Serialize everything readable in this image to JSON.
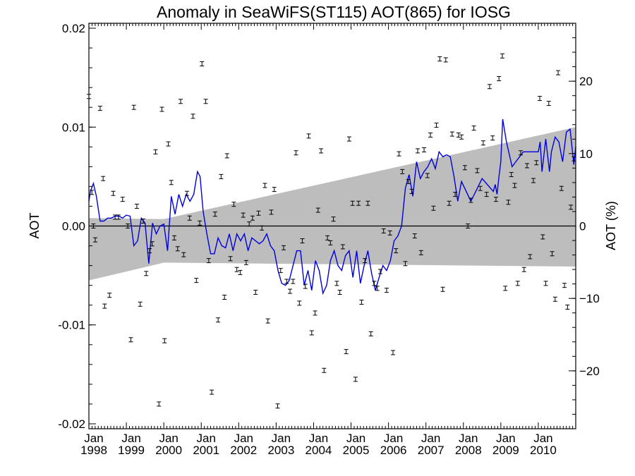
{
  "chart_data": {
    "type": "scatter",
    "title": "Anomaly in SeaWiFS(ST115) AOT(865) for IOSG",
    "ylabel": "AOT",
    "y2label": "AOT (%)",
    "xlabel": "",
    "xlim": [
      1998.0,
      2011.0
    ],
    "ylim": [
      -0.0205,
      0.0205
    ],
    "y2lim": [
      -28.0,
      28.0
    ],
    "x_ticks": [
      {
        "value": 1998,
        "month": "Jan",
        "year": "1998"
      },
      {
        "value": 1999,
        "month": "Jan",
        "year": "1999"
      },
      {
        "value": 2000,
        "month": "Jan",
        "year": "2000"
      },
      {
        "value": 2001,
        "month": "Jan",
        "year": "2001"
      },
      {
        "value": 2002,
        "month": "Jan",
        "year": "2002"
      },
      {
        "value": 2003,
        "month": "Jan",
        "year": "2003"
      },
      {
        "value": 2004,
        "month": "Jan",
        "year": "2004"
      },
      {
        "value": 2005,
        "month": "Jan",
        "year": "2005"
      },
      {
        "value": 2006,
        "month": "Jan",
        "year": "2006"
      },
      {
        "value": 2007,
        "month": "Jan",
        "year": "2007"
      },
      {
        "value": 2008,
        "month": "Jan",
        "year": "2008"
      },
      {
        "value": 2009,
        "month": "Jan",
        "year": "2009"
      },
      {
        "value": 2010,
        "month": "Jan",
        "year": "2010"
      }
    ],
    "y_ticks": [
      {
        "value": 0.02,
        "label": "0.02"
      },
      {
        "value": 0.01,
        "label": "0.01"
      },
      {
        "value": 0.0,
        "label": "0.00"
      },
      {
        "value": -0.01,
        "label": "-0.01"
      },
      {
        "value": -0.02,
        "label": "-0.02"
      }
    ],
    "y2_ticks": [
      {
        "value": 20,
        "label": "20"
      },
      {
        "value": 10,
        "label": "10"
      },
      {
        "value": 0,
        "label": "0"
      },
      {
        "value": -10,
        "label": "−10"
      },
      {
        "value": -20,
        "label": "−20"
      }
    ],
    "colors": {
      "line": "#0000dd",
      "band": "#bdbdbd",
      "points": "#000000"
    },
    "envelope": {
      "x": [
        1998.0,
        1999.9,
        2000.0,
        2011.0
      ],
      "upper": [
        0.0008,
        0.0007,
        0.0007,
        0.01
      ],
      "lower": [
        -0.0055,
        -0.0038,
        -0.0037,
        -0.0041
      ]
    },
    "series": [
      {
        "type": "line",
        "x": [
          1998.0,
          1998.04,
          1998.12,
          1998.2,
          1998.3,
          1998.4,
          1998.5,
          1998.6,
          1998.7,
          1998.8,
          1998.9,
          1999.0,
          1999.1,
          1999.2,
          1999.3,
          1999.4,
          1999.5,
          1999.6,
          1999.7,
          1999.8,
          1999.9,
          2000.0,
          2000.1,
          2000.2,
          2000.3,
          2000.4,
          2000.5,
          2000.6,
          2000.7,
          2000.8,
          2000.9,
          2000.97,
          2001.05,
          2001.15,
          2001.25,
          2001.35,
          2001.45,
          2001.55,
          2001.65,
          2001.75,
          2001.85,
          2001.95,
          2002.05,
          2002.15,
          2002.25,
          2002.35,
          2002.45,
          2002.55,
          2002.65,
          2002.75,
          2002.85,
          2002.95,
          2003.05,
          2003.15,
          2003.25,
          2003.35,
          2003.45,
          2003.55,
          2003.65,
          2003.75,
          2003.85,
          2003.95,
          2004.05,
          2004.15,
          2004.25,
          2004.35,
          2004.45,
          2004.55,
          2004.65,
          2004.75,
          2004.85,
          2004.95,
          2005.05,
          2005.15,
          2005.25,
          2005.35,
          2005.45,
          2005.55,
          2005.65,
          2005.75,
          2005.85,
          2005.95,
          2006.05,
          2006.15,
          2006.25,
          2006.35,
          2006.45,
          2006.55,
          2006.65,
          2006.75,
          2006.85,
          2006.95,
          2007.05,
          2007.15,
          2007.25,
          2007.35,
          2007.45,
          2007.55,
          2007.65,
          2007.75,
          2007.85,
          2007.95,
          2008.2,
          2008.5,
          2008.8,
          2008.85,
          2008.9,
          2008.95,
          2009.0,
          2009.05,
          2009.15,
          2009.3,
          2009.6,
          2009.8,
          2010.0,
          2010.05,
          2010.1,
          2010.2,
          2010.3,
          2010.35,
          2010.45,
          2010.55,
          2010.65,
          2010.75,
          2010.85,
          2010.95,
          2011.0
        ],
        "y": [
          0.0025,
          0.0035,
          0.0043,
          0.003,
          0.0005,
          0.0005,
          0.0008,
          0.0008,
          0.001,
          0.001,
          0.0008,
          0.0011,
          0.001,
          -0.002,
          -0.0015,
          0.0008,
          0.0003,
          -0.0038,
          0.0003,
          -0.0008,
          0.0,
          0.0002,
          -0.0025,
          0.003,
          0.0012,
          0.0032,
          0.002,
          0.0032,
          0.0025,
          0.0032,
          0.0055,
          0.005,
          0.0015,
          -0.0008,
          -0.0028,
          -0.0028,
          -0.0012,
          -0.002,
          -0.0022,
          -0.0008,
          -0.0025,
          -0.0008,
          -0.0015,
          -0.0008,
          -0.0025,
          -0.0012,
          -0.0015,
          -0.0018,
          -0.0015,
          -0.0008,
          -0.002,
          -0.0025,
          -0.0045,
          -0.0058,
          -0.006,
          -0.0055,
          -0.004,
          -0.0025,
          -0.0025,
          -0.006,
          -0.0045,
          -0.0065,
          -0.0035,
          -0.0045,
          -0.0068,
          -0.006,
          -0.0035,
          -0.0025,
          -0.004,
          -0.0045,
          -0.003,
          -0.0025,
          -0.0052,
          -0.0025,
          -0.0058,
          -0.004,
          -0.0025,
          -0.0048,
          -0.0065,
          -0.0052,
          -0.004,
          -0.0045,
          -0.0035,
          -0.0015,
          -0.001,
          0.0,
          0.0038,
          0.0052,
          0.003,
          0.0065,
          0.0048,
          0.0055,
          0.006,
          0.0068,
          0.0058,
          0.0075,
          0.007,
          0.0072,
          0.007,
          0.005,
          0.0025,
          0.0045,
          0.0025,
          0.0048,
          0.0035,
          0.0042,
          0.0032,
          0.005,
          0.0065,
          0.0108,
          0.0085,
          0.006,
          0.0075,
          0.0075,
          0.0075,
          0.0085,
          0.0055,
          0.0088,
          0.0055,
          0.0075,
          0.009,
          0.0085,
          0.0065,
          0.0095,
          0.0098,
          0.0062,
          0.008
        ]
      },
      {
        "type": "errorbar_points",
        "x": [
          1998.0,
          1998.08,
          1998.12,
          1998.17,
          1998.3,
          1998.38,
          1998.42,
          1998.55,
          1998.65,
          1998.7,
          1998.79,
          1998.9,
          1999.04,
          1999.12,
          1999.2,
          1999.28,
          1999.37,
          1999.45,
          1999.53,
          1999.62,
          1999.69,
          1999.78,
          1999.87,
          1999.95,
          2000.02,
          2000.12,
          2000.2,
          2000.28,
          2000.37,
          2000.45,
          2000.53,
          2000.62,
          2000.69,
          2000.78,
          2000.87,
          2000.96,
          2001.02,
          2001.12,
          2001.2,
          2001.28,
          2001.37,
          2001.45,
          2001.53,
          2001.62,
          2001.69,
          2001.78,
          2001.87,
          2001.95,
          2002.04,
          2002.12,
          2002.2,
          2002.28,
          2002.37,
          2002.45,
          2002.53,
          2002.62,
          2002.7,
          2002.78,
          2002.87,
          2002.95,
          2003.04,
          2003.12,
          2003.2,
          2003.28,
          2003.37,
          2003.45,
          2003.53,
          2003.62,
          2003.7,
          2003.78,
          2003.87,
          2003.95,
          2004.04,
          2004.12,
          2004.2,
          2004.28,
          2004.37,
          2004.45,
          2004.53,
          2004.62,
          2004.7,
          2004.78,
          2004.87,
          2004.95,
          2005.04,
          2005.12,
          2005.2,
          2005.28,
          2005.37,
          2005.45,
          2005.53,
          2005.62,
          2005.7,
          2005.78,
          2005.87,
          2005.95,
          2006.04,
          2006.12,
          2006.2,
          2006.28,
          2006.37,
          2006.45,
          2006.53,
          2006.62,
          2006.7,
          2006.78,
          2006.87,
          2006.95,
          2007.04,
          2007.12,
          2007.2,
          2007.28,
          2007.37,
          2007.45,
          2007.53,
          2007.62,
          2007.7,
          2007.78,
          2007.87,
          2007.95,
          2008.04,
          2008.12,
          2008.2,
          2008.28,
          2008.37,
          2008.45,
          2008.53,
          2008.62,
          2008.7,
          2008.78,
          2008.87,
          2008.95,
          2009.04,
          2009.12,
          2009.2,
          2009.28,
          2009.37,
          2009.45,
          2009.53,
          2009.62,
          2009.7,
          2009.78,
          2009.87,
          2009.95,
          2010.04,
          2010.12,
          2010.2,
          2010.28,
          2010.37,
          2010.45,
          2010.53,
          2010.62,
          2010.7,
          2010.78,
          2010.87,
          2010.95
        ],
        "y": [
          0.0131,
          0.0034,
          0.0,
          -0.0014,
          0.0119,
          0.0048,
          -0.0081,
          -0.007,
          0.0033,
          0.0009,
          0.0009,
          0.0027,
          0.0,
          -0.0115,
          0.012,
          0.002,
          -0.0079,
          0.0005,
          -0.0048,
          -0.0025,
          -0.0018,
          0.0075,
          -0.018,
          0.0118,
          -0.0116,
          0.0083,
          0.0044,
          -0.0012,
          -0.0023,
          0.0126,
          -0.0029,
          0.0033,
          0.0008,
          0.0111,
          -0.0055,
          0.0003,
          0.0164,
          0.0126,
          -0.0035,
          -0.0168,
          0.0012,
          -0.0095,
          0.005,
          -0.0072,
          0.0071,
          -0.0033,
          0.0022,
          -0.0044,
          -0.0047,
          0.0011,
          -0.0037,
          0.0002,
          0.0008,
          -0.0067,
          0.0013,
          -0.0002,
          0.0041,
          -0.0096,
          0.0014,
          0.0037,
          -0.0182,
          -0.0045,
          -0.0022,
          -0.0056,
          -0.0066,
          -0.0056,
          0.0074,
          -0.0078,
          -0.0015,
          -0.0061,
          0.0091,
          -0.0108,
          -0.0088,
          0.0016,
          0.0076,
          -0.0146,
          -0.0012,
          -0.0017,
          0.0007,
          -0.0058,
          -0.0067,
          -0.0021,
          -0.0127,
          0.0088,
          0.0023,
          -0.0155,
          0.0023,
          -0.0077,
          -0.0035,
          0.0023,
          -0.0109,
          -0.0058,
          -0.0063,
          -0.0046,
          -0.0005,
          -0.0065,
          -0.0007,
          -0.0128,
          -0.0025,
          0.0073,
          0.0055,
          -0.0038,
          0.0045,
          0.0035,
          -0.001,
          0.0076,
          -0.0027,
          0.0077,
          0.0051,
          0.0092,
          0.0018,
          0.0102,
          0.0169,
          -0.0064,
          0.0168,
          0.0023,
          0.0093,
          0.0032,
          0.0092,
          0.009,
          0.0059,
          0.0,
          0.0026,
          0.0099,
          0.0056,
          0.0038,
          0.0084,
          0.0032,
          0.0141,
          0.0089,
          0.0027,
          0.0149,
          0.0172,
          -0.0063,
          0.0024,
          0.0052,
          0.0041,
          -0.0058,
          0.0074,
          -0.0044,
          0.0061,
          -0.0031,
          0.0046,
          0.0064,
          0.0129,
          -0.0011,
          -0.0058,
          0.0124,
          -0.0028,
          -0.0074,
          0.0155,
          0.0038,
          -0.006,
          -0.0082,
          0.0019,
          0.0068
        ]
      }
    ]
  }
}
